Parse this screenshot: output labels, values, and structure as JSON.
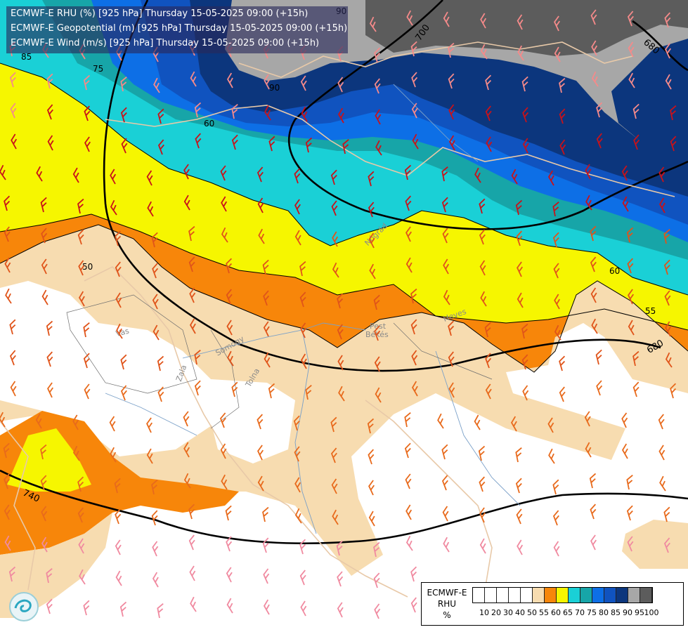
{
  "header": {
    "line1": "ECMWF-E RHU (%) [925 hPa] Thursday 15-05-2025 09:00 (+15h)",
    "line2": "ECMWF-E Geopotential (m) [925 hPa] Thursday 15-05-2025 09:00 (+15h)",
    "line3": "ECMWF-E Wind (m/s) [925 hPa] Thursday 15-05-2025 09:00 (+15h)"
  },
  "legend": {
    "line1": "ECMWF-E",
    "line2": "RHU",
    "line3": "%",
    "colors": [
      "#ffffff",
      "#ffffff",
      "#ffffff",
      "#ffffff",
      "#ffffff",
      "#f7dcb0",
      "#f7860a",
      "#f6f600",
      "#1ad0d6",
      "#17a5a8",
      "#0d6fe6",
      "#1053bf",
      "#0c367d",
      "#a7a7a7",
      "#5c5c5c"
    ],
    "ticks": [
      "10",
      "20",
      "30",
      "40",
      "50",
      "55",
      "60",
      "65",
      "70",
      "75",
      "80",
      "85",
      "90",
      "95",
      "100"
    ]
  },
  "map": {
    "contour_labels": {
      "rhu": [
        "85",
        "75",
        "90",
        "60",
        "50",
        "60",
        "55",
        "90"
      ],
      "geopotential": [
        "700",
        "680",
        "680",
        "740"
      ]
    },
    "place_labels": [
      "Vas",
      "Somogy",
      "Tolna",
      "Zala",
      "Pest",
      "Heves",
      "Nógrád",
      "Békés"
    ]
  }
}
